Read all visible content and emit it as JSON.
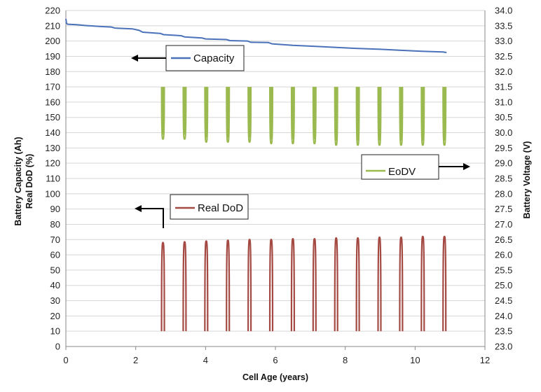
{
  "chart_data": {
    "type": "line",
    "xlabel": "Cell Age (years)",
    "ylabel_left": [
      "Battery Capacity (Ah)",
      "Real DoD (%)"
    ],
    "ylabel_right": "Battery Voltage (V)",
    "xlim": [
      0,
      12
    ],
    "ylim_left": [
      0,
      220
    ],
    "ylim_right": [
      23.0,
      34.0
    ],
    "x_ticks": [
      "0",
      "2",
      "4",
      "6",
      "8",
      "10",
      "12"
    ],
    "y_left_ticks": [
      "0",
      "10",
      "20",
      "30",
      "40",
      "50",
      "60",
      "70",
      "80",
      "90",
      "100",
      "110",
      "120",
      "130",
      "140",
      "150",
      "160",
      "170",
      "180",
      "190",
      "200",
      "210",
      "220"
    ],
    "y_right_ticks": [
      "23.0",
      "23.5",
      "24.0",
      "24.5",
      "25.0",
      "25.5",
      "26.0",
      "26.5",
      "27.0",
      "27.5",
      "28.0",
      "28.5",
      "29.0",
      "29.5",
      "30.0",
      "30.5",
      "31.0",
      "31.5",
      "32.0",
      "32.5",
      "33.0",
      "33.5",
      "34.0"
    ],
    "grid": true,
    "colors": {
      "capacity": "#4a72b8",
      "eodv": "#9ab94f",
      "dod": "#a44a43",
      "grid": "#d6d6d6"
    },
    "series": [
      {
        "name": "Capacity",
        "axis": "left",
        "x": [
          0,
          0.02,
          0.05,
          0.3,
          0.6,
          1.0,
          1.3,
          1.4,
          1.9,
          2.1,
          2.2,
          2.7,
          2.8,
          3.3,
          3.4,
          3.9,
          4.0,
          4.6,
          4.7,
          5.2,
          5.3,
          5.8,
          5.9,
          6.5,
          7.1,
          7.7,
          8.3,
          9.0,
          9.6,
          10.2,
          10.8,
          10.9
        ],
        "y": [
          214.5,
          211.5,
          211.0,
          210.7,
          210.1,
          209.5,
          209.2,
          208.5,
          208.0,
          207.0,
          205.8,
          205.0,
          204.2,
          203.5,
          202.7,
          202.0,
          201.4,
          201.0,
          200.3,
          200.0,
          199.2,
          199.0,
          198.2,
          197.2,
          196.6,
          195.9,
          195.2,
          194.6,
          193.9,
          193.3,
          192.8,
          192.5
        ]
      },
      {
        "name": "EoDV",
        "axis": "right",
        "pulse_x": [
          2.78,
          3.4,
          4.02,
          4.64,
          5.26,
          5.88,
          6.5,
          7.12,
          7.74,
          8.36,
          8.98,
          9.6,
          10.22,
          10.84
        ],
        "min_v": [
          29.8,
          29.8,
          29.7,
          29.7,
          29.7,
          29.65,
          29.65,
          29.65,
          29.6,
          29.6,
          29.6,
          29.6,
          29.6,
          29.6
        ],
        "max_v": 31.5
      },
      {
        "name": "Real DoD",
        "axis": "left",
        "pulse_x": [
          2.78,
          3.4,
          4.02,
          4.64,
          5.26,
          5.88,
          6.5,
          7.12,
          7.74,
          8.36,
          8.98,
          9.6,
          10.22,
          10.84
        ],
        "peak": [
          68,
          68.5,
          69,
          69.5,
          70,
          70,
          70.5,
          70.5,
          71,
          71,
          71.5,
          71.5,
          72,
          72
        ],
        "base": 10
      }
    ]
  }
}
